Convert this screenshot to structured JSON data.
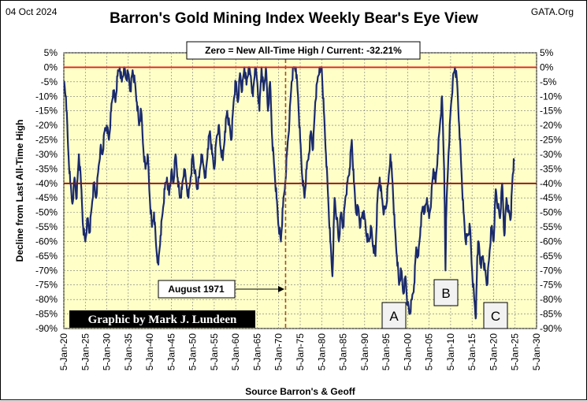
{
  "header": {
    "date": "04 Oct 2024",
    "title": "Barron's Gold Mining Index Weekly Bear's Eye View",
    "source_tag": "GATA.Org"
  },
  "annotations": {
    "zero_note": "Zero = New All-Time High / Current:  -32.21%",
    "august_label": "August 1971",
    "credit": "Graphic by Mark J. Lundeen",
    "letter_a": "A",
    "letter_b": "B",
    "letter_c": "C"
  },
  "colors": {
    "plot_bg": "#ffffc8",
    "series": "#1a2a6c",
    "zero_line": "#e02020",
    "forty_line": "#8b1010",
    "august_line": "#a0522d"
  },
  "chart_data": {
    "type": "line",
    "title": "Barron's Gold Mining Index Weekly Bear's Eye View",
    "ylabel": "Decline from Last All-Time High",
    "xlabel": "Source Barron's & Geoff",
    "ylim": [
      -90,
      5
    ],
    "xlim": [
      1920,
      2030
    ],
    "grid": true,
    "y_ticks": [
      "5%",
      "0%",
      "-5%",
      "-10%",
      "-15%",
      "-20%",
      "-25%",
      "-30%",
      "-35%",
      "-40%",
      "-45%",
      "-50%",
      "-55%",
      "-60%",
      "-65%",
      "-70%",
      "-75%",
      "-80%",
      "-85%",
      "-90%"
    ],
    "x_ticks": [
      "5-Jan-20",
      "5-Jan-25",
      "5-Jan-30",
      "5-Jan-35",
      "5-Jan-40",
      "5-Jan-45",
      "5-Jan-50",
      "5-Jan-55",
      "5-Jan-60",
      "5-Jan-65",
      "5-Jan-70",
      "5-Jan-75",
      "5-Jan-80",
      "5-Jan-85",
      "5-Jan-90",
      "5-Jan-95",
      "5-Jan-00",
      "5-Jan-05",
      "5-Jan-10",
      "5-Jan-15",
      "5-Jan-20",
      "5-Jan-25",
      "5-Jan-30"
    ],
    "reference_lines": [
      {
        "y": 0,
        "note": "New All-Time High"
      },
      {
        "y": -40
      }
    ],
    "event_line": {
      "x": 1971.6,
      "label": "August 1971"
    },
    "current_value": -32.21,
    "series": [
      {
        "points": [
          [
            1920.0,
            -5
          ],
          [
            1920.5,
            -10
          ],
          [
            1921.0,
            -28
          ],
          [
            1921.5,
            -40
          ],
          [
            1922.0,
            -47
          ],
          [
            1922.5,
            -38
          ],
          [
            1923.0,
            -45
          ],
          [
            1923.5,
            -30
          ],
          [
            1924.0,
            -40
          ],
          [
            1924.5,
            -55
          ],
          [
            1925.0,
            -60
          ],
          [
            1925.5,
            -52
          ],
          [
            1926.0,
            -57
          ],
          [
            1926.5,
            -48
          ],
          [
            1927.0,
            -40
          ],
          [
            1927.5,
            -45
          ],
          [
            1928.0,
            -36
          ],
          [
            1928.5,
            -28
          ],
          [
            1929.0,
            -30
          ],
          [
            1929.5,
            -22
          ],
          [
            1930.0,
            -20
          ],
          [
            1930.5,
            -25
          ],
          [
            1931.0,
            -15
          ],
          [
            1931.5,
            -8
          ],
          [
            1932.0,
            -12
          ],
          [
            1932.5,
            -3
          ],
          [
            1933.0,
            0
          ],
          [
            1933.5,
            -5
          ],
          [
            1934.0,
            0
          ],
          [
            1934.5,
            -4
          ],
          [
            1935.0,
            -2
          ],
          [
            1935.5,
            -8
          ],
          [
            1936.0,
            -1
          ],
          [
            1936.5,
            -5
          ],
          [
            1937.0,
            -12
          ],
          [
            1937.5,
            -20
          ],
          [
            1938.0,
            -15
          ],
          [
            1938.5,
            -28
          ],
          [
            1939.0,
            -35
          ],
          [
            1939.5,
            -30
          ],
          [
            1940.0,
            -45
          ],
          [
            1940.5,
            -55
          ],
          [
            1941.0,
            -50
          ],
          [
            1941.5,
            -62
          ],
          [
            1942.0,
            -68
          ],
          [
            1942.5,
            -58
          ],
          [
            1943.0,
            -50
          ],
          [
            1943.5,
            -42
          ],
          [
            1944.0,
            -38
          ],
          [
            1944.5,
            -44
          ],
          [
            1945.0,
            -36
          ],
          [
            1945.5,
            -40
          ],
          [
            1946.0,
            -30
          ],
          [
            1946.5,
            -38
          ],
          [
            1947.0,
            -45
          ],
          [
            1947.5,
            -42
          ],
          [
            1948.0,
            -35
          ],
          [
            1948.5,
            -40
          ],
          [
            1949.0,
            -45
          ],
          [
            1949.5,
            -38
          ],
          [
            1950.0,
            -30
          ],
          [
            1950.5,
            -36
          ],
          [
            1951.0,
            -42
          ],
          [
            1951.5,
            -38
          ],
          [
            1952.0,
            -30
          ],
          [
            1952.5,
            -34
          ],
          [
            1953.0,
            -38
          ],
          [
            1953.5,
            -28
          ],
          [
            1954.0,
            -22
          ],
          [
            1954.5,
            -30
          ],
          [
            1955.0,
            -35
          ],
          [
            1955.5,
            -25
          ],
          [
            1956.0,
            -20
          ],
          [
            1956.5,
            -28
          ],
          [
            1957.0,
            -32
          ],
          [
            1957.5,
            -22
          ],
          [
            1958.0,
            -15
          ],
          [
            1958.5,
            -20
          ],
          [
            1959.0,
            -25
          ],
          [
            1959.5,
            -12
          ],
          [
            1960.0,
            -5
          ],
          [
            1960.5,
            -12
          ],
          [
            1961.0,
            -2
          ],
          [
            1961.5,
            -8
          ],
          [
            1962.0,
            0
          ],
          [
            1962.5,
            -6
          ],
          [
            1963.0,
            0
          ],
          [
            1963.5,
            -3
          ],
          [
            1964.0,
            -10
          ],
          [
            1964.5,
            0
          ],
          [
            1965.0,
            -5
          ],
          [
            1965.5,
            -15
          ],
          [
            1966.0,
            0
          ],
          [
            1966.5,
            -8
          ],
          [
            1967.0,
            0
          ],
          [
            1967.5,
            -15
          ],
          [
            1968.0,
            -5
          ],
          [
            1968.5,
            -25
          ],
          [
            1969.0,
            -35
          ],
          [
            1969.5,
            -45
          ],
          [
            1970.0,
            -55
          ],
          [
            1970.5,
            -60
          ],
          [
            1971.0,
            -48
          ],
          [
            1971.5,
            -40
          ],
          [
            1972.0,
            -28
          ],
          [
            1972.5,
            -18
          ],
          [
            1973.0,
            -5
          ],
          [
            1973.5,
            0
          ],
          [
            1974.0,
            0
          ],
          [
            1974.5,
            -10
          ],
          [
            1975.0,
            -25
          ],
          [
            1975.5,
            -38
          ],
          [
            1976.0,
            -45
          ],
          [
            1976.5,
            -35
          ],
          [
            1977.0,
            -30
          ],
          [
            1977.5,
            -22
          ],
          [
            1978.0,
            -28
          ],
          [
            1978.5,
            -12
          ],
          [
            1979.0,
            -5
          ],
          [
            1979.5,
            0
          ],
          [
            1980.0,
            0
          ],
          [
            1980.5,
            -15
          ],
          [
            1981.0,
            -30
          ],
          [
            1981.5,
            -45
          ],
          [
            1982.0,
            -60
          ],
          [
            1982.5,
            -72
          ],
          [
            1983.0,
            -45
          ],
          [
            1983.5,
            -52
          ],
          [
            1984.0,
            -60
          ],
          [
            1984.5,
            -50
          ],
          [
            1985.0,
            -55
          ],
          [
            1985.5,
            -45
          ],
          [
            1986.0,
            -40
          ],
          [
            1986.5,
            -35
          ],
          [
            1987.0,
            -25
          ],
          [
            1987.5,
            -40
          ],
          [
            1988.0,
            -50
          ],
          [
            1988.5,
            -48
          ],
          [
            1989.0,
            -55
          ],
          [
            1989.5,
            -50
          ],
          [
            1990.0,
            -52
          ],
          [
            1990.5,
            -58
          ],
          [
            1991.0,
            -60
          ],
          [
            1991.5,
            -55
          ],
          [
            1992.0,
            -62
          ],
          [
            1992.5,
            -65
          ],
          [
            1993.0,
            -45
          ],
          [
            1993.5,
            -38
          ],
          [
            1994.0,
            -45
          ],
          [
            1994.5,
            -50
          ],
          [
            1995.0,
            -48
          ],
          [
            1995.5,
            -40
          ],
          [
            1996.0,
            -30
          ],
          [
            1996.5,
            -40
          ],
          [
            1997.0,
            -55
          ],
          [
            1997.5,
            -65
          ],
          [
            1998.0,
            -75
          ],
          [
            1998.5,
            -70
          ],
          [
            1999.0,
            -78
          ],
          [
            1999.5,
            -72
          ],
          [
            2000.0,
            -82
          ],
          [
            2000.5,
            -85
          ],
          [
            2001.0,
            -80
          ],
          [
            2001.5,
            -75
          ],
          [
            2002.0,
            -62
          ],
          [
            2002.5,
            -65
          ],
          [
            2003.0,
            -55
          ],
          [
            2003.5,
            -48
          ],
          [
            2004.0,
            -50
          ],
          [
            2004.5,
            -45
          ],
          [
            2005.0,
            -52
          ],
          [
            2005.5,
            -45
          ],
          [
            2006.0,
            -35
          ],
          [
            2006.5,
            -40
          ],
          [
            2007.0,
            -30
          ],
          [
            2007.5,
            -20
          ],
          [
            2008.0,
            -10
          ],
          [
            2008.5,
            -35
          ],
          [
            2008.8,
            -70
          ],
          [
            2009.0,
            -50
          ],
          [
            2009.5,
            -30
          ],
          [
            2010.0,
            -15
          ],
          [
            2010.5,
            -5
          ],
          [
            2011.0,
            0
          ],
          [
            2011.5,
            -5
          ],
          [
            2012.0,
            -20
          ],
          [
            2012.5,
            -35
          ],
          [
            2013.0,
            -50
          ],
          [
            2013.5,
            -60
          ],
          [
            2014.0,
            -58
          ],
          [
            2014.5,
            -55
          ],
          [
            2015.0,
            -70
          ],
          [
            2015.5,
            -80
          ],
          [
            2015.9,
            -86
          ],
          [
            2016.2,
            -65
          ],
          [
            2016.5,
            -60
          ],
          [
            2017.0,
            -68
          ],
          [
            2017.5,
            -65
          ],
          [
            2018.0,
            -70
          ],
          [
            2018.5,
            -75
          ],
          [
            2019.0,
            -65
          ],
          [
            2019.5,
            -55
          ],
          [
            2020.0,
            -60
          ],
          [
            2020.5,
            -42
          ],
          [
            2021.0,
            -48
          ],
          [
            2021.5,
            -52
          ],
          [
            2022.0,
            -40
          ],
          [
            2022.5,
            -58
          ],
          [
            2023.0,
            -45
          ],
          [
            2023.5,
            -50
          ],
          [
            2024.0,
            -52
          ],
          [
            2024.4,
            -38
          ],
          [
            2024.76,
            -32.21
          ]
        ]
      }
    ]
  }
}
